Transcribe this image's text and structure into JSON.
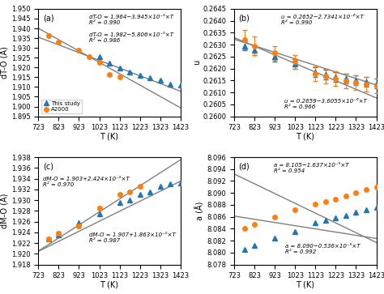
{
  "chart_data": [
    {
      "type": "scatter",
      "title": "(a)",
      "x_label": "T (K)",
      "y_label": "dT-O (Å)",
      "xlim": [
        723,
        1423
      ],
      "xticks": [
        723,
        823,
        923,
        1023,
        1123,
        1223,
        1323,
        1423
      ],
      "ylim": [
        1.895,
        1.95
      ],
      "yticks": [
        1.895,
        {
          "value": 1.9,
          "label": "1.900"
        },
        1.905,
        {
          "value": 1.91,
          "label": "1.910"
        },
        1.915,
        {
          "value": 1.92,
          "label": "1.920"
        },
        1.925,
        {
          "value": 1.93,
          "label": "1.930"
        },
        1.935,
        {
          "value": 1.94,
          "label": "1.940"
        },
        1.945,
        {
          "value": 1.95,
          "label": "1.950"
        }
      ],
      "legend": "lower left",
      "series": [
        {
          "name": "This study",
          "marker": "triangle",
          "x": [
            1023,
            1073,
            1123,
            1173,
            1223,
            1273,
            1323,
            1373,
            1423
          ],
          "values": [
            1.9253,
            1.9222,
            1.9195,
            1.9175,
            1.9158,
            1.9148,
            1.9135,
            1.9115,
            1.9108
          ]
        },
        {
          "name": "A2000",
          "marker": "circle",
          "x": [
            773,
            823,
            923,
            973,
            1023,
            1073,
            1123
          ],
          "values": [
            1.9363,
            1.933,
            1.929,
            1.9255,
            1.9225,
            1.9165,
            1.915
          ]
        },
        {
          "type": "line",
          "x": [
            723,
            1423
          ],
          "values": [
            1.93547765,
            1.90786265
          ]
        },
        {
          "type": "line",
          "x": [
            723,
            1423
          ],
          "values": [
            1.94002262,
            1.89938062
          ]
        }
      ],
      "annotations": [
        "dT-O = 1.964−3.945×10⁻⁵×T\nR² = 0.990",
        "dT-O = 1.982−5.806×10⁻⁵×T\nR² = 0.986"
      ]
    },
    {
      "type": "scatter",
      "title": "(b)",
      "x_label": "T (K)",
      "y_label": "u",
      "xlim": [
        723,
        1423
      ],
      "xticks": [
        723,
        823,
        923,
        1023,
        1123,
        1223,
        1323,
        1423
      ],
      "ylim": [
        0.26,
        0.2645
      ],
      "yticks": [
        {
          "value": 0.26,
          "label": "0.2600"
        },
        0.2605,
        {
          "value": 0.261,
          "label": "0.2610"
        },
        0.2615,
        {
          "value": 0.262,
          "label": "0.2620"
        },
        0.2625,
        {
          "value": 0.263,
          "label": "0.2630"
        },
        0.2635,
        {
          "value": 0.264,
          "label": "0.2640"
        },
        0.2645
      ],
      "series": [
        {
          "name": "This study",
          "marker": "triangle",
          "x": [
            773,
            823,
            923,
            1023,
            1123,
            1173,
            1223,
            1273,
            1323,
            1373,
            1423
          ],
          "values": [
            0.26295,
            0.26278,
            0.26248,
            0.26218,
            0.26185,
            0.26175,
            0.26165,
            0.26158,
            0.2615,
            0.26145,
            0.26138
          ],
          "yerr": [
            0.0002,
            0.0002,
            0.0002,
            0.0002,
            0.0002,
            0.0002,
            0.0002,
            0.0002,
            0.0002,
            0.0002,
            0.0002
          ]
        },
        {
          "name": "A2000",
          "marker": "circle",
          "x": [
            773,
            823,
            923,
            1023,
            1123,
            1173,
            1223,
            1273,
            1323,
            1373,
            1423
          ],
          "values": [
            0.2632,
            0.26295,
            0.26265,
            0.26228,
            0.26178,
            0.26168,
            0.26158,
            0.26148,
            0.2614,
            0.26135,
            0.26128
          ],
          "yerr": [
            0.0004,
            0.0004,
            0.0003,
            0.0003,
            0.0003,
            0.0003,
            0.0003,
            0.0003,
            0.0003,
            0.0003,
            0.0003
          ]
        },
        {
          "type": "line",
          "x": [
            723,
            1423
          ],
          "values": [
            0.2632232457,
            0.2613093757
          ]
        },
        {
          "type": "line",
          "x": [
            723,
            1423
          ],
          "values": [
            0.2632932235,
            0.2607693735
          ]
        }
      ],
      "annotations": [
        "u = 0.2652−2.7341×10⁻⁶×T\nR² = 0.990",
        "u = 0.2659−3.6055×10⁻⁶×T\nR² = 0.966"
      ]
    },
    {
      "type": "scatter",
      "title": "(c)",
      "x_label": "T (K)",
      "y_label": "dM-O (Å)",
      "xlim": [
        723,
        1423
      ],
      "xticks": [
        723,
        823,
        923,
        1023,
        1123,
        1223,
        1323,
        1423
      ],
      "ylim": [
        1.918,
        1.938
      ],
      "yticks": [
        1.918,
        {
          "value": 1.92,
          "label": "1.920"
        },
        1.922,
        1.924,
        1.926,
        1.928,
        {
          "value": 1.93,
          "label": "1.930"
        },
        1.932,
        1.934,
        1.936,
        1.938
      ],
      "series": [
        {
          "name": "This study",
          "marker": "triangle",
          "x": [
            773,
            823,
            923,
            1023,
            1123,
            1173,
            1223,
            1273,
            1323,
            1373,
            1423
          ],
          "values": [
            1.9228,
            1.9235,
            1.9258,
            1.9275,
            1.9295,
            1.93,
            1.931,
            1.9315,
            1.9325,
            1.933,
            1.9332
          ]
        },
        {
          "name": "A2000",
          "marker": "circle",
          "x": [
            773,
            823,
            923,
            1023,
            1123,
            1173,
            1223
          ],
          "values": [
            1.9228,
            1.9238,
            1.9252,
            1.9285,
            1.931,
            1.9315,
            1.9325
          ],
          "yerr": [
            0.0003,
            0.0003,
            0.0003,
            0.0003,
            0.0002,
            0.0002,
            0.0002
          ]
        },
        {
          "type": "line",
          "x": [
            723,
            1423
          ],
          "values": [
            1.92052552,
            1.93749352
          ]
        },
        {
          "type": "line",
          "x": [
            723,
            1423
          ],
          "values": [
            1.92046949,
            1.93351049
          ]
        }
      ],
      "annotations": [
        "dM-O = 1.903+2.424×10⁻⁵×T\nR² = 0.970",
        "dM-O = 1.907+1.863×10⁻⁵×T\nR² = 0.987"
      ]
    },
    {
      "type": "scatter",
      "title": "(d)",
      "x_label": "T (K)",
      "y_label": "a (Å)",
      "xlim": [
        723,
        1423
      ],
      "xticks": [
        723,
        823,
        923,
        1023,
        1123,
        1223,
        1323,
        1423
      ],
      "ylim": [
        8.078,
        8.096
      ],
      "yticks": [
        8.078,
        {
          "value": 8.08,
          "label": "8.080"
        },
        8.082,
        8.084,
        8.086,
        8.088,
        {
          "value": 8.09,
          "label": "8.090"
        },
        8.092,
        8.094,
        8.096
      ],
      "series": [
        {
          "name": "This study",
          "marker": "triangle",
          "x": [
            773,
            823,
            923,
            1023,
            1123,
            1173,
            1223,
            1273,
            1323,
            1373,
            1423
          ],
          "values": [
            8.0805,
            8.0812,
            8.0825,
            8.0835,
            8.085,
            8.0854,
            8.0858,
            8.0862,
            8.0868,
            8.0872,
            8.0876
          ]
        },
        {
          "name": "A2000",
          "marker": "circle",
          "x": [
            773,
            823,
            923,
            1023,
            1123,
            1173,
            1223,
            1273,
            1323,
            1373,
            1423
          ],
          "values": [
            8.084,
            8.0848,
            8.086,
            8.0872,
            8.0882,
            8.0886,
            8.089,
            8.0895,
            8.09,
            8.0906,
            8.091
          ]
        },
        {
          "type": "line",
          "x": [
            723,
            1423
          ],
          "values": [
            8.09316449,
            8.08170549
          ]
        },
        {
          "type": "line",
          "x": [
            723,
            1423
          ],
          "values": [
            8.08612472,
            8.08237272
          ]
        }
      ],
      "annotations": [
        "a = 8.105−1.637×10⁻⁵×T\nR² = 0.954",
        "a = 8.090−0.536×10⁻⁵×T\nR² = 0.992"
      ]
    }
  ]
}
